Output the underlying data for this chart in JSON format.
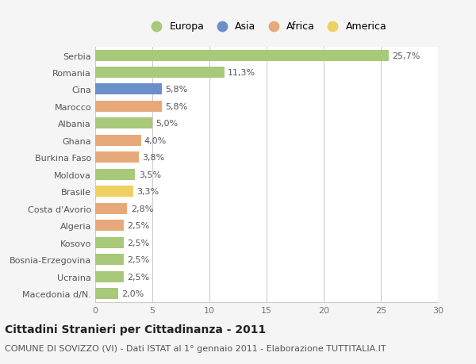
{
  "countries": [
    "Serbia",
    "Romania",
    "Cina",
    "Marocco",
    "Albania",
    "Ghana",
    "Burkina Faso",
    "Moldova",
    "Brasile",
    "Costa d'Avorio",
    "Algeria",
    "Kosovo",
    "Bosnia-Erzegovina",
    "Ucraina",
    "Macedonia d/N."
  ],
  "values": [
    25.7,
    11.3,
    5.8,
    5.8,
    5.0,
    4.0,
    3.8,
    3.5,
    3.3,
    2.8,
    2.5,
    2.5,
    2.5,
    2.5,
    2.0
  ],
  "labels": [
    "25,7%",
    "11,3%",
    "5,8%",
    "5,8%",
    "5,0%",
    "4,0%",
    "3,8%",
    "3,5%",
    "3,3%",
    "2,8%",
    "2,5%",
    "2,5%",
    "2,5%",
    "2,5%",
    "2,0%"
  ],
  "continents": [
    "Europa",
    "Europa",
    "Asia",
    "Africa",
    "Europa",
    "Africa",
    "Africa",
    "Europa",
    "America",
    "Africa",
    "Africa",
    "Europa",
    "Europa",
    "Europa",
    "Europa"
  ],
  "continent_colors": {
    "Europa": "#a8c87a",
    "Asia": "#6b8fc9",
    "Africa": "#e8a97a",
    "America": "#f0d060"
  },
  "legend_order": [
    "Europa",
    "Asia",
    "Africa",
    "America"
  ],
  "xlim": [
    0,
    30
  ],
  "xticks": [
    0,
    5,
    10,
    15,
    20,
    25,
    30
  ],
  "title": "Cittadini Stranieri per Cittadinanza - 2011",
  "subtitle": "COMUNE DI SOVIZZO (VI) - Dati ISTAT al 1° gennaio 2011 - Elaborazione TUTTITALIA.IT",
  "background_color": "#f5f5f5",
  "bar_area_color": "#ffffff",
  "grid_color": "#cccccc",
  "title_fontsize": 10,
  "subtitle_fontsize": 8,
  "tick_fontsize": 8,
  "label_fontsize": 8,
  "legend_fontsize": 9
}
